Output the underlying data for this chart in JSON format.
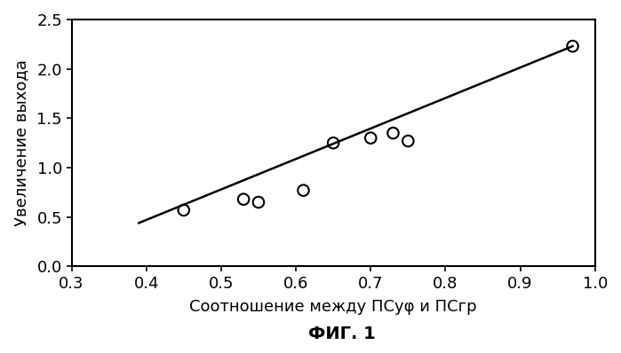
{
  "scatter_x": [
    0.45,
    0.53,
    0.55,
    0.61,
    0.65,
    0.7,
    0.73,
    0.75,
    0.97
  ],
  "scatter_y": [
    0.57,
    0.68,
    0.65,
    0.77,
    1.25,
    1.3,
    1.35,
    1.27,
    2.23
  ],
  "line_x": [
    0.39,
    0.97
  ],
  "line_y": [
    0.44,
    2.23
  ],
  "xlim": [
    0.3,
    1.0
  ],
  "ylim": [
    0.0,
    2.5
  ],
  "xticks": [
    0.3,
    0.4,
    0.5,
    0.6,
    0.7,
    0.8,
    0.9,
    1.0
  ],
  "yticks": [
    0.0,
    0.5,
    1.0,
    1.5,
    2.0,
    2.5
  ],
  "xlabel": "Соотношение между ПСуφ и ПСгр",
  "ylabel": "Увеличение выхода",
  "figure_label": "ФИГ. 1",
  "bg_color": "#ffffff",
  "line_color": "#000000",
  "scatter_color": "#000000",
  "marker_size": 9,
  "line_width": 1.8,
  "xlabel_size": 13,
  "ylabel_size": 13,
  "tick_size": 13,
  "figure_label_size": 14
}
